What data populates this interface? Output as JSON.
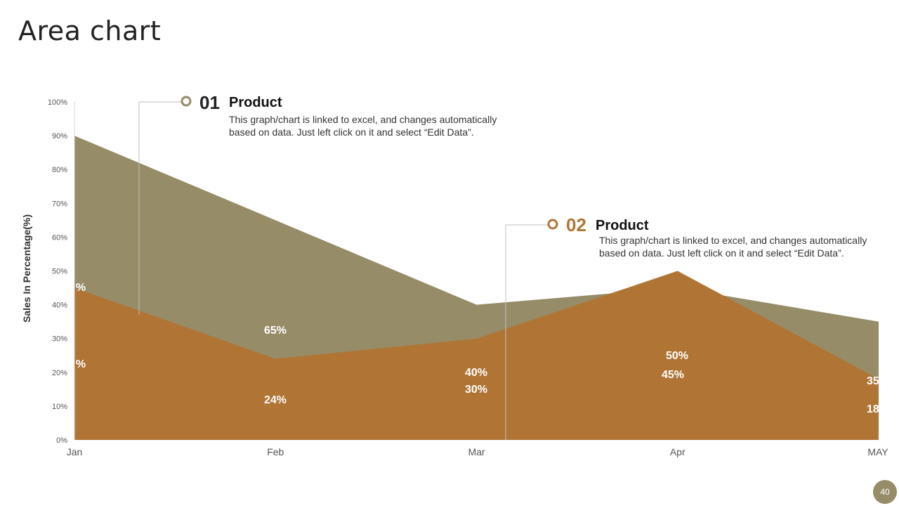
{
  "page": {
    "title": "Area chart",
    "page_number": "40"
  },
  "callouts": [
    {
      "number": "01",
      "heading": "Product",
      "text": "This graph/chart is linked to excel, and changes automatically based on data. Just left click on it and select “Edit Data”.",
      "color": "#978c68"
    },
    {
      "number": "02",
      "heading": "Product",
      "text": "This graph/chart is linked to excel, and changes automatically based on data. Just left click on it and select “Edit Data”.",
      "color": "#b07535"
    }
  ],
  "chart_data": {
    "type": "area",
    "categories": [
      "Jan",
      "Feb",
      "Mar",
      "Apr",
      "MAY"
    ],
    "ylabel": "Sales In Percentage(%)",
    "ylim": [
      0,
      100
    ],
    "yticks": [
      "0%",
      "10%",
      "20%",
      "30%",
      "40%",
      "50%",
      "60%",
      "70%",
      "80%",
      "90%",
      "100%"
    ],
    "series": [
      {
        "values": [
          90,
          65,
          40,
          45,
          35
        ],
        "labels": [
          "%",
          "65%",
          "40%",
          "45%",
          "35"
        ],
        "color": "#978c68"
      },
      {
        "values": [
          45,
          24,
          30,
          50,
          18
        ],
        "labels": [
          "%",
          "24%",
          "30%",
          "50%",
          "18"
        ],
        "color": "#b07535"
      }
    ],
    "grid": false,
    "data_labels": true
  }
}
